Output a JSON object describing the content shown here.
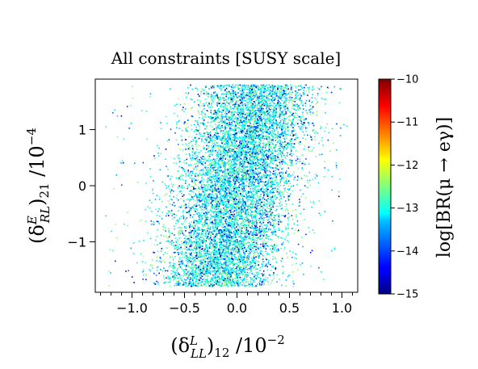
{
  "chart_data": {
    "type": "scatter",
    "title": "All constraints [SUSY scale]",
    "xlabel": {
      "pre": "(δ",
      "sup": "L",
      "sub": "LL",
      "post": ")",
      "sub2": "12",
      "unit": " /10",
      "exp": "−2"
    },
    "ylabel": {
      "pre": "(δ",
      "sup": "E",
      "sub": "RL",
      "post": ")",
      "sub2": "21",
      "unit": " /10",
      "exp": "−4"
    },
    "xlim": [
      -1.35,
      1.15
    ],
    "ylim": [
      -1.9,
      1.9
    ],
    "xticks": [
      {
        "value": -1.0,
        "label": "−1.0"
      },
      {
        "value": -0.5,
        "label": "−0.5"
      },
      {
        "value": 0.0,
        "label": "0.0"
      },
      {
        "value": 0.5,
        "label": "0.5"
      },
      {
        "value": 1.0,
        "label": "1.0"
      }
    ],
    "yticks": [
      {
        "value": 1,
        "label": "1"
      },
      {
        "value": 0,
        "label": "0"
      },
      {
        "value": -1,
        "label": "−1"
      }
    ],
    "colorbar": {
      "label": "log[BR(μ → eγ)]",
      "min": -15,
      "max": -10,
      "colormap": "jet",
      "ticks": [
        {
          "value": -10,
          "label": "−10"
        },
        {
          "value": -11,
          "label": "−11"
        },
        {
          "value": -12,
          "label": "−12"
        },
        {
          "value": -13,
          "label": "−13"
        },
        {
          "value": -14,
          "label": "−14"
        },
        {
          "value": -15,
          "label": "−15"
        }
      ]
    },
    "points_description": {
      "count": 9000,
      "x_center": 0.0,
      "x_spread": 0.28,
      "y_range": [
        -1.8,
        1.8
      ],
      "correlation_slope": 0.12,
      "color_value_range": [
        -15.0,
        -12.3
      ],
      "dominant_color_value": -13.2
    }
  }
}
